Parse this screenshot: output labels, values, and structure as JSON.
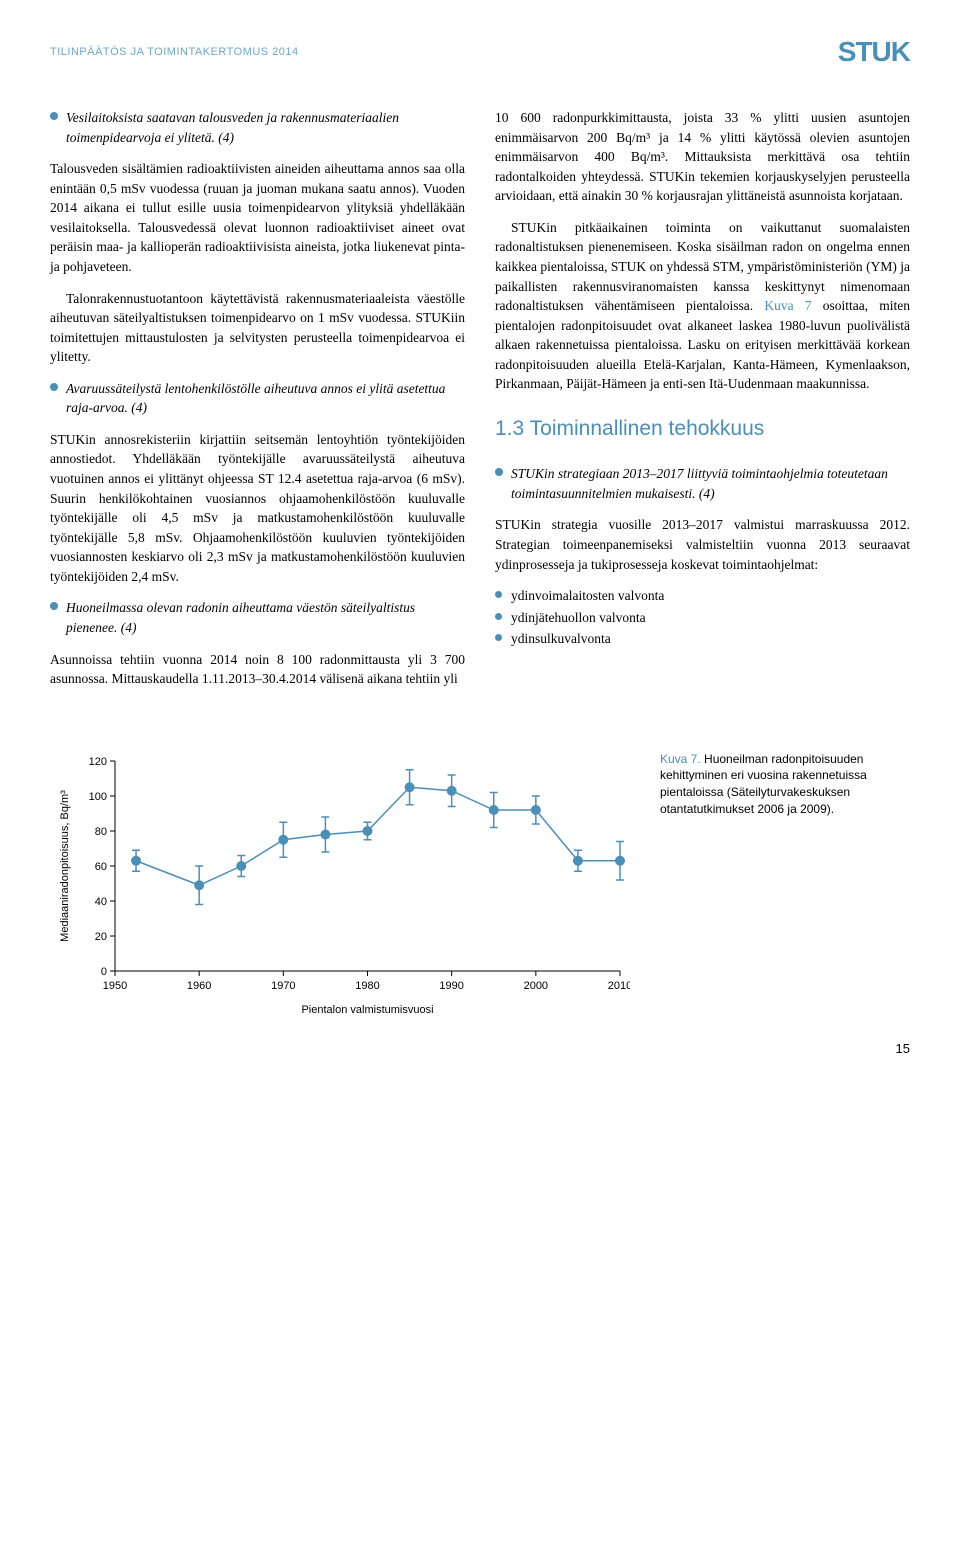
{
  "header": {
    "left": "TILINPÄÄTÖS JA TOIMINTAKERTOMUS 2014",
    "right": "STUK"
  },
  "left_col": {
    "bullet1": "Vesilaitoksista saatavan talousveden ja rakennusmateriaalien toimenpidearvoja ei ylitetä. (4)",
    "para1": "Talousveden sisältämien radioaktiivisten aineiden aiheuttama annos saa olla enintään 0,5 mSv vuodessa (ruuan ja juoman mukana saatu annos). Vuoden 2014 aikana ei tullut esille uusia toimenpidearvon ylityksiä yhdelläkään vesilaitoksella. Talousvedessä olevat luonnon radioaktiiviset aineet ovat peräisin maa- ja kallioperän radioaktiivisista aineista, jotka liukenevat pinta- ja pohjaveteen.",
    "para2": "Talonrakennustuotantoon käytettävistä rakennusmateriaaleista väestölle aiheutuvan säteilyaltistuksen toimenpidearvo on 1 mSv vuodessa. STUKiin toimitettujen mittaustulosten ja selvitysten perusteella toimenpidearvoa ei ylitetty.",
    "bullet2": "Avaruussäteilystä lentohenkilöstölle aiheutuva annos ei ylitä asetettua raja-arvoa. (4)",
    "para3": "STUKin annosrekisteriin kirjattiin seitsemän lentoyhtiön työntekijöiden annostiedot. Yhdelläkään työntekijälle avaruussäteilystä aiheutuva vuotuinen annos ei ylittänyt ohjeessa ST 12.4 asetettua raja-arvoa (6 mSv). Suurin henkilökohtainen vuosiannos ohjaamohenkilöstöön kuuluvalle työntekijälle oli 4,5 mSv ja matkustamohenkilöstöön kuuluvalle työntekijälle 5,8 mSv. Ohjaamohenkilöstöön kuuluvien työntekijöiden vuosiannosten keskiarvo oli 2,3 mSv ja matkustamohenkilöstöön kuuluvien työntekijöiden 2,4 mSv.",
    "bullet3": "Huoneilmassa olevan radonin aiheuttama väestön säteilyaltistus pienenee. (4)",
    "para4": "Asunnoissa tehtiin vuonna 2014 noin 8 100 radonmittausta yli 3 700 asunnossa. Mittauskaudella 1.11.2013–30.4.2014 välisenä aikana tehtiin yli"
  },
  "right_col": {
    "para1a": "10 600 radonpurkkimittausta, joista 33 % ylitti uusien asuntojen enimmäisarvon 200 Bq/m³ ja 14 % ylitti käytössä olevien asuntojen enimmäisarvon 400 Bq/m³. Mittauksista merkittävä osa tehtiin radontalkoiden yhteydessä. STUKin tekemien korjauskyselyjen perusteella arvioidaan, että ainakin 30 % korjausrajan ylittäneistä asunnoista korjataan.",
    "para1b_pre": "STUKin pitkäaikainen toiminta on vaikuttanut suomalaisten radonaltistuksen pienenemiseen. Koska sisäilman radon on ongelma ennen kaikkea pientaloissa, STUK on yhdessä STM, ympäristöministeriön (YM) ja paikallisten rakennusviranomaisten kanssa keskittynyt nimenomaan radonaltistuksen vähentämiseen pientaloissa. ",
    "para1b_link": "Kuva 7",
    "para1b_post": " osoittaa, miten pientalojen radonpitoisuudet ovat alkaneet laskea 1980-luvun puolivälistä alkaen rakennetuissa pientaloissa. Lasku on erityisen merkittävää korkean radonpitoisuuden alueilla Etelä-Karjalan, Kanta-Hämeen, Kymenlaakson, Pirkanmaan, Päijät-Hämeen ja enti-sen Itä-Uudenmaan maakunnissa.",
    "heading": "1.3 Toiminnallinen tehokkuus",
    "bullet1": "STUKin strategiaan 2013–2017 liittyviä toimintaohjelmia toteutetaan toimintasuunnitelmien mukaisesti. (4)",
    "para2": "STUKin strategia vuosille 2013–2017 valmistui marraskuussa 2012. Strategian toimeenpanemiseksi valmisteltiin vuonna 2013 seuraavat ydinprosesseja ja tukiprosesseja koskevat toimintaohjelmat:",
    "items": [
      "ydinvoimalaitosten valvonta",
      "ydinjätehuollon valvonta",
      "ydinsulkuvalvonta"
    ]
  },
  "chart": {
    "y_label": "Mediaaniradonpitoisuus, Bq/m³",
    "x_label": "Pientalon valmistumisvuosi",
    "y_ticks": [
      0,
      20,
      40,
      60,
      80,
      100,
      120
    ],
    "x_ticks": [
      1950,
      1960,
      1970,
      1980,
      1990,
      2000,
      2010
    ],
    "ylim": [
      0,
      120
    ],
    "xlim": [
      1950,
      2010
    ],
    "line_color": "#4a8fb8",
    "marker_color": "#4a8fb8",
    "marker_size": 5,
    "line_width": 1.5,
    "axis_color": "#000000",
    "tick_color": "#000000",
    "data": [
      {
        "x": 1952.5,
        "y": 63,
        "err": 6
      },
      {
        "x": 1960,
        "y": 49,
        "err": 11
      },
      {
        "x": 1965,
        "y": 60,
        "err": 6
      },
      {
        "x": 1970,
        "y": 75,
        "err": 10
      },
      {
        "x": 1975,
        "y": 78,
        "err": 10
      },
      {
        "x": 1980,
        "y": 80,
        "err": 5
      },
      {
        "x": 1985,
        "y": 105,
        "err": 10
      },
      {
        "x": 1990,
        "y": 103,
        "err": 9
      },
      {
        "x": 1995,
        "y": 92,
        "err": 10
      },
      {
        "x": 2000,
        "y": 92,
        "err": 8
      },
      {
        "x": 2005,
        "y": 63,
        "err": 6
      },
      {
        "x": 2010,
        "y": 63,
        "err": 11
      }
    ]
  },
  "caption": {
    "label": "Kuva 7.",
    "text": " Huoneilman radonpitoisuuden kehittyminen eri vuosina rakennetuissa pientaloissa (Säteilyturvakeskuksen otantatutkimukset 2006 ja 2009)."
  },
  "page_number": "15"
}
